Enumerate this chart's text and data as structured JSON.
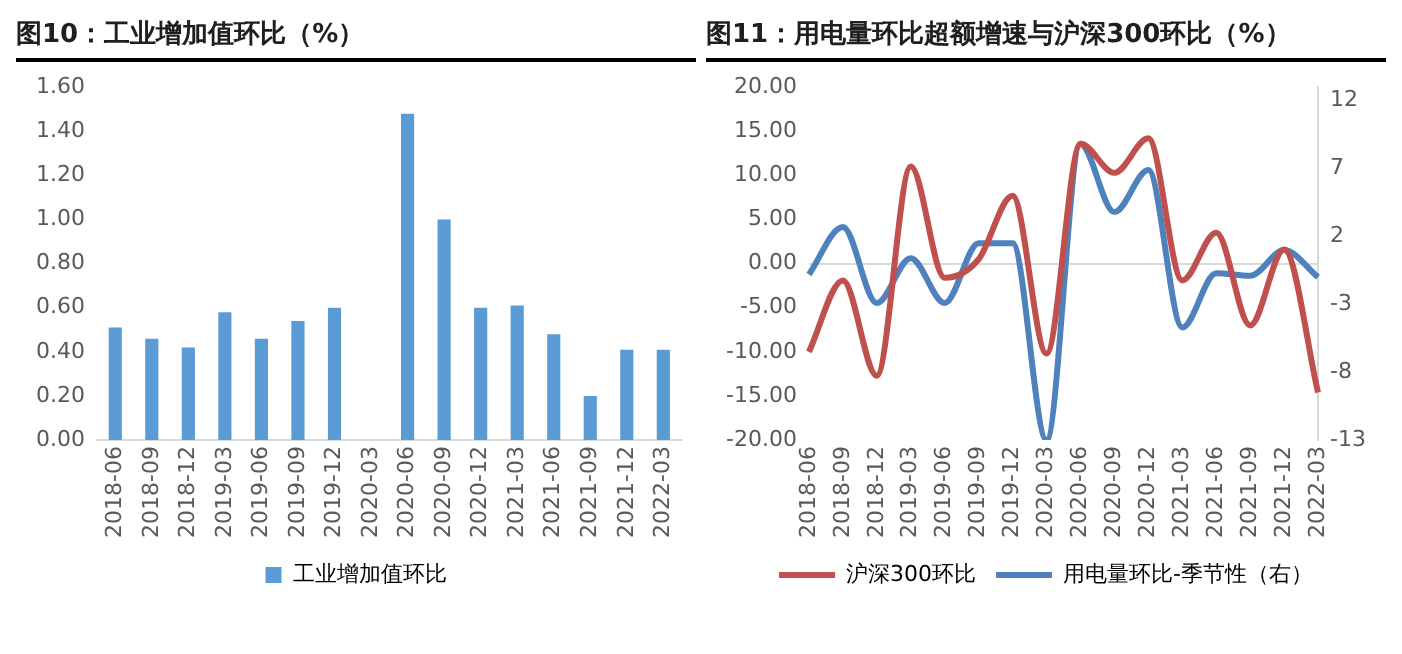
{
  "chart_data": [
    {
      "type": "bar",
      "title": "图10：工业增加值环比（%）",
      "categories": [
        "2018-06",
        "2018-09",
        "2018-12",
        "2019-03",
        "2019-06",
        "2019-09",
        "2019-12",
        "2020-03",
        "2020-06",
        "2020-09",
        "2020-12",
        "2021-03",
        "2021-06",
        "2021-09",
        "2021-12",
        "2022-03"
      ],
      "series": [
        {
          "name": "工业增加值环比",
          "color": "#5b9bd5",
          "values": [
            0.51,
            0.46,
            0.42,
            0.58,
            0.46,
            0.54,
            0.6,
            null,
            1.48,
            1.0,
            0.6,
            0.61,
            0.48,
            0.2,
            0.41,
            0.41
          ]
        }
      ],
      "ylim": [
        0,
        1.6
      ],
      "yticks": [
        {
          "value": 0,
          "label": "0.00"
        },
        {
          "value": 0.2,
          "label": "0.20"
        },
        {
          "value": 0.4,
          "label": "0.40"
        },
        {
          "value": 0.6,
          "label": "0.60"
        },
        {
          "value": 0.8,
          "label": "0.80"
        },
        {
          "value": 1.0,
          "label": "1.00"
        },
        {
          "value": 1.2,
          "label": "1.20"
        },
        {
          "value": 1.4,
          "label": "1.40"
        },
        {
          "value": 1.6,
          "label": "1.60"
        }
      ],
      "legend": "bottom"
    },
    {
      "type": "line",
      "title": "图11：用电量环比超额增速与沪深300环比（%）",
      "categories": [
        "2018-06",
        "2018-09",
        "2018-12",
        "2019-03",
        "2019-06",
        "2019-09",
        "2019-12",
        "2020-03",
        "2020-06",
        "2020-09",
        "2020-12",
        "2021-03",
        "2021-06",
        "2021-09",
        "2021-12",
        "2022-03"
      ],
      "series": [
        {
          "name": "沪深300环比",
          "color": "#c0504d",
          "values": [
            -10.0,
            -1.9,
            -12.7,
            11.0,
            -1.6,
            0.5,
            7.7,
            -10.2,
            13.6,
            10.3,
            14.2,
            -1.9,
            3.5,
            -7.0,
            1.6,
            -14.6
          ]
        },
        {
          "name": "用电量环比-季节性（右）",
          "color": "#4f81bd",
          "axis": "y2",
          "values": [
            -0.8,
            2.7,
            -2.9,
            0.4,
            -2.9,
            1.5,
            1.5,
            -13.0,
            8.8,
            3.8,
            6.9,
            -4.7,
            -0.7,
            -0.9,
            1.0,
            -1.0
          ]
        }
      ],
      "ylim": [
        -20,
        20
      ],
      "yticks": [
        {
          "value": -20,
          "label": "-20.00"
        },
        {
          "value": -15,
          "label": "-15.00"
        },
        {
          "value": -10,
          "label": "-10.00"
        },
        {
          "value": -5,
          "label": "-5.00"
        },
        {
          "value": 0,
          "label": "0.00"
        },
        {
          "value": 5,
          "label": "5.00"
        },
        {
          "value": 10,
          "label": "10.00"
        },
        {
          "value": 15,
          "label": "15.00"
        },
        {
          "value": 20,
          "label": "20.00"
        }
      ],
      "y2lim": [
        -13,
        13
      ],
      "y2ticks": [
        -13,
        -8,
        -3,
        2,
        7,
        12
      ],
      "marker": "none",
      "legend": "bottom"
    }
  ]
}
